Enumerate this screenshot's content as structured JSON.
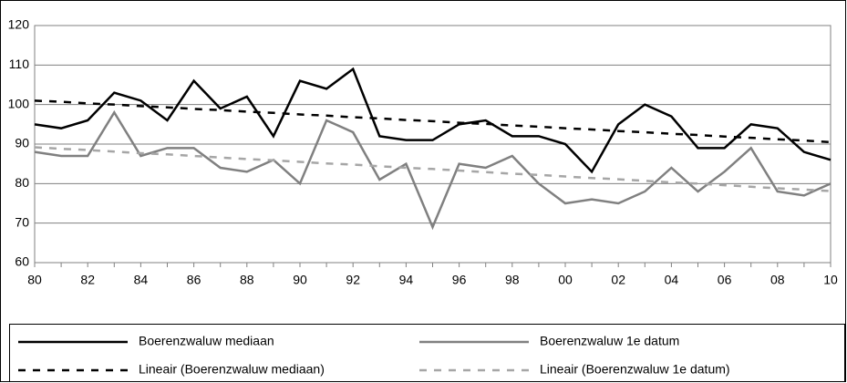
{
  "chart_data": {
    "type": "line",
    "categories": [
      "80",
      null,
      "82",
      null,
      "84",
      null,
      "86",
      null,
      "88",
      null,
      "90",
      null,
      "92",
      null,
      "94",
      null,
      "96",
      null,
      "98",
      null,
      "00",
      null,
      "02",
      null,
      "04",
      null,
      "06",
      null,
      "08",
      null,
      "10"
    ],
    "series": [
      {
        "name": "Boerenzwaluw mediaan",
        "color": "#000000",
        "dashed": false,
        "values": [
          95,
          94,
          96,
          103,
          101,
          96,
          106,
          99,
          102,
          92,
          106,
          104,
          109,
          92,
          91,
          91,
          95,
          96,
          92,
          92,
          90,
          83,
          95,
          100,
          97,
          89,
          89,
          95,
          94,
          88,
          86
        ]
      },
      {
        "name": "Boerenzwaluw 1e datum",
        "color": "#808080",
        "dashed": false,
        "values": [
          88,
          87,
          87,
          98,
          87,
          89,
          89,
          84,
          83,
          86,
          80,
          96,
          93,
          81,
          85,
          69,
          85,
          84,
          87,
          80,
          75,
          76,
          75,
          78,
          84,
          78,
          83,
          89,
          78,
          77,
          80
        ]
      },
      {
        "name": "Lineair (Boerenzwaluw mediaan)",
        "color": "#000000",
        "dashed": true,
        "values": [
          101,
          100.7,
          100.3,
          100.0,
          99.6,
          99.3,
          98.9,
          98.6,
          98.2,
          97.9,
          97.5,
          97.2,
          96.8,
          96.5,
          96.1,
          95.8,
          95.4,
          95.1,
          94.7,
          94.4,
          94.0,
          93.7,
          93.3,
          93.0,
          92.6,
          92.3,
          91.9,
          91.6,
          91.2,
          90.9,
          90.5
        ]
      },
      {
        "name": "Lineair (Boerenzwaluw 1e datum)",
        "color": "#a6a6a6",
        "dashed": true,
        "values": [
          89.2,
          88.8,
          88.5,
          88.1,
          87.7,
          87.4,
          87.0,
          86.6,
          86.2,
          85.9,
          85.5,
          85.1,
          84.8,
          84.4,
          84.0,
          83.7,
          83.3,
          82.9,
          82.5,
          82.2,
          81.8,
          81.4,
          81.1,
          80.7,
          80.3,
          80.0,
          79.6,
          79.2,
          78.8,
          78.5,
          78.1
        ]
      }
    ],
    "ylim": [
      60,
      120
    ],
    "yticks": [
      60,
      70,
      80,
      90,
      100,
      110,
      120
    ],
    "grid": true
  }
}
